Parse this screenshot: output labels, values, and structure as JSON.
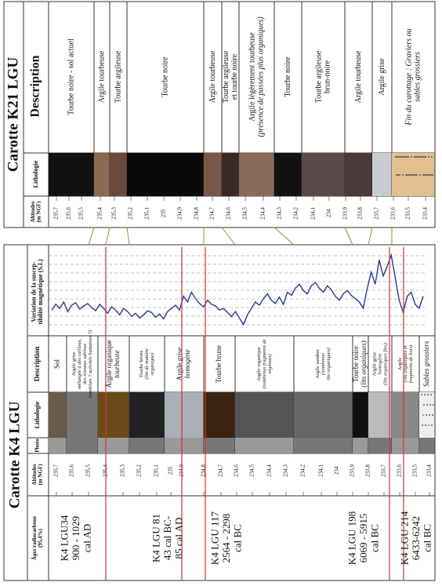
{
  "k21": {
    "title": "Carotte K21 LGU",
    "headers": {
      "description": "Description",
      "lithology": "Lithologie",
      "altitudes": [
        "Altitudes",
        "(m NGF)"
      ]
    },
    "altitudes": [
      "235,7",
      "235,6",
      "235,5",
      "235,4",
      "235,3",
      "235,2",
      "235,1",
      "235",
      "234,9",
      "234,8",
      "234,7",
      "234,6",
      "234,5",
      "234,4",
      "234,3",
      "234,2",
      "234,1",
      "234",
      "233,9",
      "233,8",
      "233,7",
      "233,6",
      "233,5",
      "233,4"
    ],
    "descriptions": [
      {
        "lines": [
          "Tourbe noire - sol actuel"
        ]
      },
      {
        "lines": [
          "Argile tourbeuse"
        ]
      },
      {
        "lines": [
          "Tourbe argileuse"
        ]
      },
      {
        "lines": [
          "Tourbe noire"
        ]
      },
      {
        "lines": [
          "Argile tourbeuse"
        ]
      },
      {
        "lines": [
          "Tourbe argileuse",
          "et tourbe noire"
        ]
      },
      {
        "lines": [
          "Argile légèrement tourbeuse",
          "(présence de passées plus organiques)"
        ]
      },
      {
        "lines": [
          "Tourbe noire"
        ]
      },
      {
        "lines": [
          "Tourbe argileuse",
          "brun-noire"
        ]
      },
      {
        "lines": [
          "Argile tourbeuse"
        ]
      },
      {
        "lines": [
          "Argile grise"
        ]
      },
      {
        "lines": [
          "Fin du carottage : Graviers ou",
          "sables grossiers"
        ]
      }
    ]
  },
  "k4": {
    "title": "Carotte K4 LGU",
    "headers": {
      "susceptibility": [
        "Variation de la suscep-",
        "tibilité magnétique (S.I.)"
      ],
      "description": "Description",
      "lithology": "Lithologie",
      "photo": "Photo",
      "altitudes": [
        "Altitudes",
        "(m NGF)"
      ],
      "ages": [
        "Âges radiocarbone",
        "(95,4%)"
      ]
    },
    "altitudes": [
      "235,7",
      "235,6",
      "235,5",
      "235,4",
      "235,3",
      "235,2",
      "235,1",
      "235",
      "234,9",
      "234,8",
      "234,7",
      "234,6",
      "234,5",
      "234,4",
      "234,3",
      "234,2",
      "234,1",
      "234",
      "233,9",
      "233,8",
      "233,7",
      "233,6",
      "233,5",
      "233,4"
    ],
    "descriptions": [
      {
        "lines": [
          "Sol"
        ]
      },
      {
        "lines": [
          "Argile grise",
          "mélangée à des cailloux,",
          "des niveaux sableux",
          "(remblais ? activités humaines ?)"
        ]
      },
      {
        "lines": [
          "Argile organique",
          "tourbeuse"
        ]
      },
      {
        "lines": [
          "Tourbe brune",
          "(lits de matière",
          "organique)"
        ]
      },
      {
        "lines": [
          "Argile grise",
          "homogène"
        ]
      },
      {
        "lines": [
          "Tourbe brune"
        ]
      },
      {
        "lines": [
          "Argile organique",
          "(nombreux fragments de",
          "végétaux)"
        ]
      },
      {
        "lines": [
          "Argile sombre",
          "(nombreux",
          "lits organiques)"
        ]
      },
      {
        "lines": [
          "Tourbe noire",
          "(lits organiques)"
        ]
      },
      {
        "lines": [
          "Argile grise",
          "homogène",
          "(lits organiques fins)"
        ]
      },
      {
        "lines": [
          "Argile",
          "(lits organiques et",
          "fragments de bois)"
        ]
      },
      {
        "lines": [
          "Sables grossiers"
        ]
      }
    ],
    "ages": [
      {
        "lines": [
          "K4 LGU34",
          "900 - 1029",
          "cal AD"
        ]
      },
      {
        "lines": [
          "K4 LGU 81",
          "43 cal BC-",
          "85 cal AD"
        ]
      },
      {
        "lines": [
          "K4 LGU 117",
          "2564 - 2298",
          "cal BC"
        ]
      },
      {
        "lines": [
          "K4 LGU 198",
          "6069 - 5915",
          "cal BC"
        ]
      },
      {
        "lines": [
          "K4 LGU 214",
          "6433-6242",
          "cal BC"
        ]
      }
    ],
    "susceptibility": {
      "ylim": [
        0,
        100
      ],
      "values": [
        28,
        35,
        30,
        38,
        26,
        34,
        37,
        29,
        33,
        36,
        31,
        27,
        35,
        30,
        24,
        32,
        28,
        22,
        30,
        26,
        20,
        24,
        18,
        22,
        27,
        25,
        19,
        23,
        17,
        26,
        30,
        34,
        28,
        45,
        38,
        50,
        42,
        36,
        32,
        40,
        35,
        33,
        28,
        30,
        25,
        20,
        26,
        18,
        10,
        22,
        30,
        38,
        34,
        42,
        48,
        40,
        36,
        44,
        35,
        50,
        46,
        55,
        60,
        52,
        48,
        58,
        62,
        55,
        50,
        58,
        53,
        45,
        40,
        48,
        52,
        46,
        42,
        38,
        30,
        55,
        75,
        60,
        90,
        70,
        82,
        96,
        68,
        40,
        25,
        45,
        50,
        35,
        30,
        45
      ]
    }
  }
}
